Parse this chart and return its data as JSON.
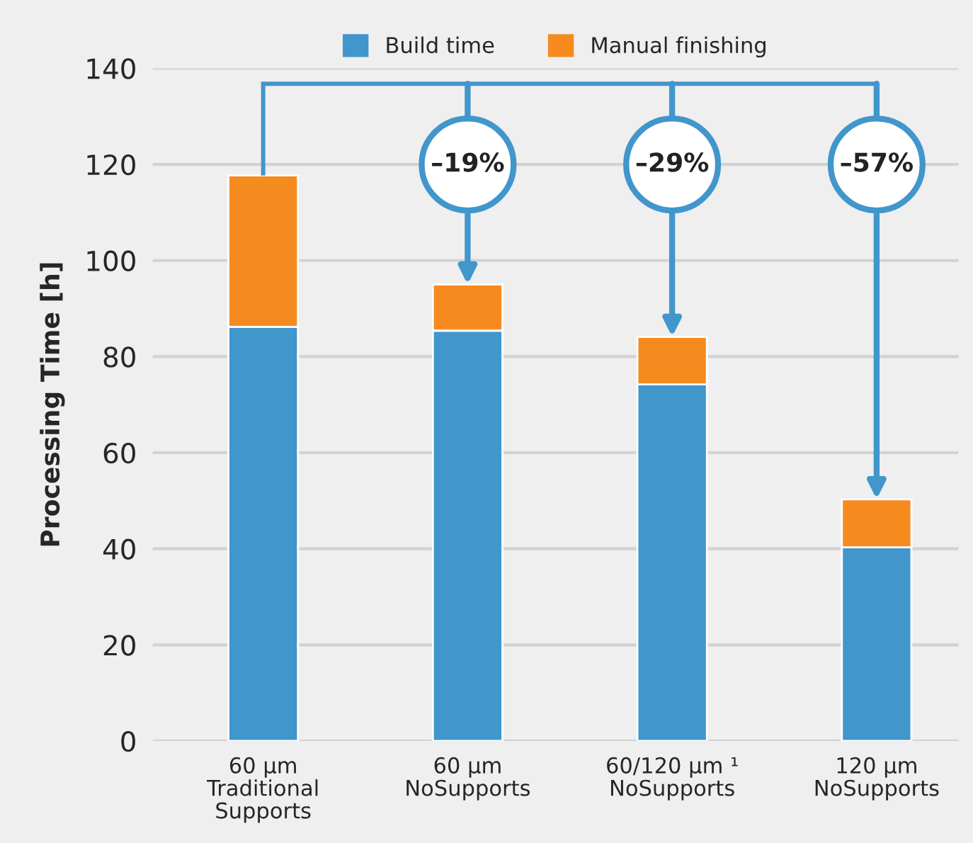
{
  "chart_data": {
    "type": "bar",
    "stacked": true,
    "ylabel": "Processing Time [h]",
    "categories": [
      "60 µm\nTraditional\nSupports",
      "60 µm\nNoSupports",
      "60/120 µm ¹\nNoSupports",
      "120 µm\nNoSupports"
    ],
    "series": [
      {
        "name": "Build time",
        "color": "#4196cc",
        "values": [
          86.2,
          85.4,
          74.2,
          40.3
        ]
      },
      {
        "name": "Manual finishing",
        "color": "#f58b1f",
        "values": [
          31.5,
          9.6,
          9.9,
          10.0
        ]
      }
    ],
    "ylim": [
      0,
      140
    ],
    "yticks": [
      0,
      20,
      40,
      60,
      80,
      100,
      120,
      140
    ],
    "grid": "y",
    "legend": "top",
    "annotations": [
      "–19%",
      "–29%",
      "–57%"
    ]
  }
}
